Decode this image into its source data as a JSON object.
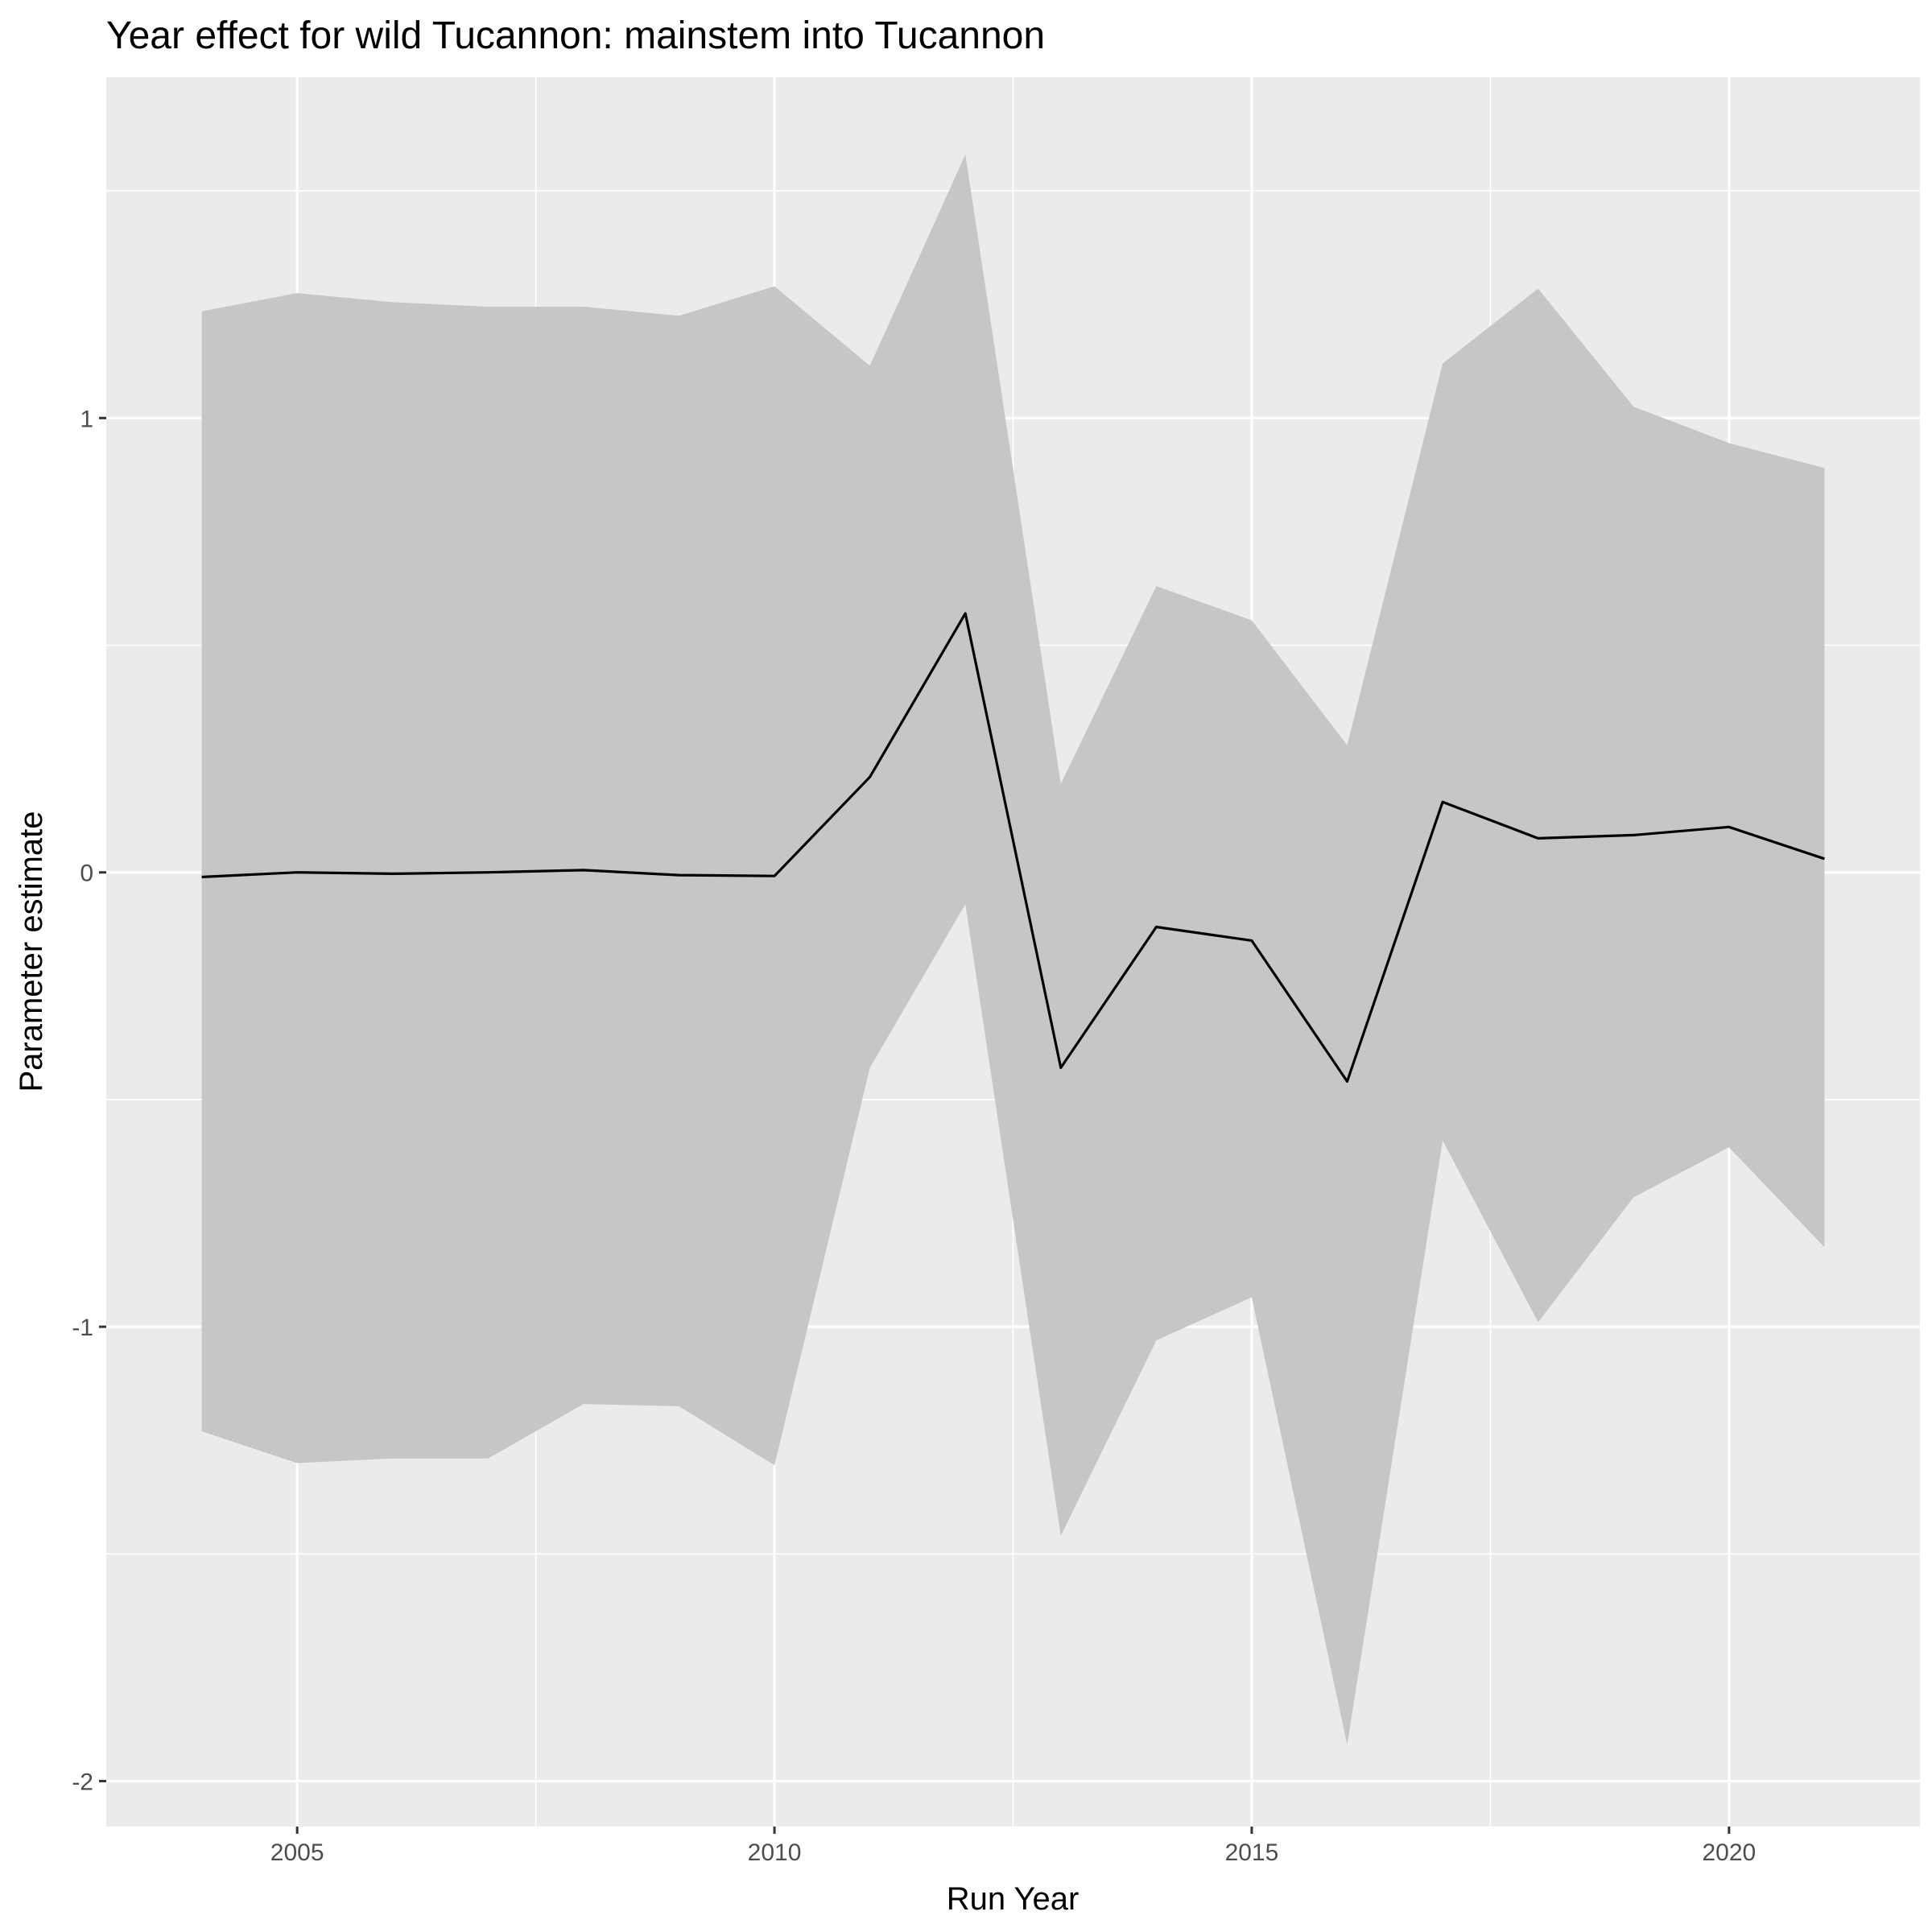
{
  "chart_data": {
    "type": "line",
    "title": "Year effect for wild Tucannon: mainstem into Tucannon",
    "xlabel": "Run Year",
    "ylabel": "Parameter estimate",
    "xlim": [
      2003.0,
      2022.0
    ],
    "ylim": [
      -2.1,
      1.75
    ],
    "x_ticks": [
      2005,
      2010,
      2015,
      2020
    ],
    "x_tick_labels": [
      "2005",
      "2010",
      "2015",
      "2020"
    ],
    "y_ticks": [
      1,
      0,
      -1,
      -2
    ],
    "y_tick_labels": [
      "1",
      "0",
      "-1",
      "-2"
    ],
    "x_minor_ticks": [
      2007.5,
      2012.5,
      2017.5
    ],
    "y_minor_ticks": [
      1.5,
      0.5,
      -0.5,
      -1.5
    ],
    "grid": true,
    "colors": {
      "panel_background": "#ebebeb",
      "grid": "#ffffff",
      "ribbon": "#c6c6c6",
      "line": "#000000"
    },
    "series": [
      {
        "x": [
          2004,
          2005,
          2006,
          2007,
          2008,
          2009,
          2010,
          2011,
          2012,
          2013,
          2014,
          2015,
          2016,
          2017,
          2018,
          2019,
          2020,
          2021
        ],
        "estimate": [
          -0.01,
          0.0,
          -0.003,
          0.0,
          0.005,
          -0.006,
          -0.008,
          0.21,
          0.57,
          -0.43,
          -0.12,
          -0.15,
          -0.46,
          0.155,
          0.075,
          0.082,
          0.1,
          0.03
        ],
        "lower": [
          -1.23,
          -1.3,
          -1.29,
          -1.29,
          -1.17,
          -1.175,
          -1.305,
          -0.43,
          -0.07,
          -1.46,
          -1.03,
          -0.935,
          -1.92,
          -0.59,
          -0.99,
          -0.715,
          -0.605,
          -0.825
        ],
        "upper": [
          1.235,
          1.275,
          1.255,
          1.245,
          1.245,
          1.225,
          1.29,
          1.115,
          1.58,
          0.195,
          0.63,
          0.555,
          0.28,
          1.12,
          1.285,
          1.025,
          0.945,
          0.89
        ]
      }
    ]
  }
}
